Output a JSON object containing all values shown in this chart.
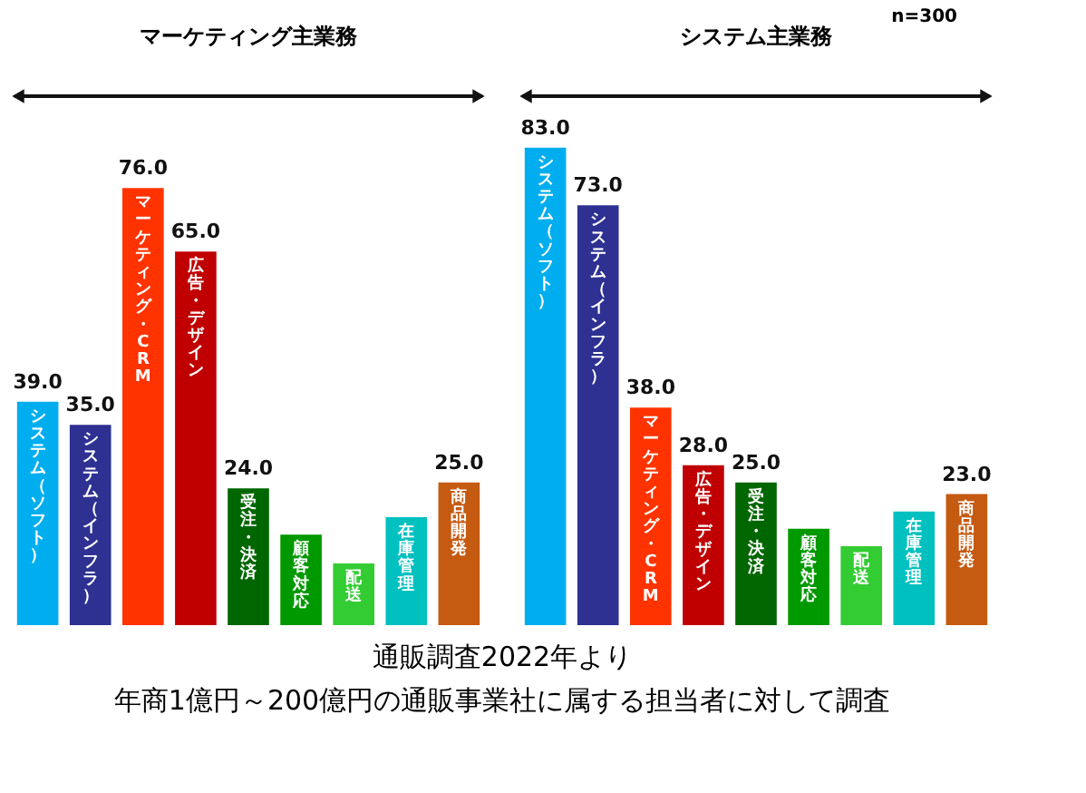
{
  "chart_data": [
    {
      "type": "bar",
      "title": "マーケティング主業務",
      "categories": [
        "システム（ソフト）",
        "システム（インフラ）",
        "マーケティング・CRM",
        "広告・デザイン",
        "受注・決済",
        "顧客対応",
        "配送",
        "在庫管理",
        "商品開発"
      ],
      "values": [
        39,
        35,
        76,
        65,
        24,
        16,
        11,
        19,
        25
      ],
      "colors": [
        "#00aeef",
        "#2e3192",
        "#ff3300",
        "#c00000",
        "#006600",
        "#009900",
        "#33cc33",
        "#00c0c0",
        "#c55a11"
      ],
      "value_labels": [
        "39.0",
        "35.0",
        "76.0",
        "65.0",
        "24.0",
        null,
        null,
        null,
        "25.0"
      ]
    },
    {
      "type": "bar",
      "title": "システム主業務",
      "categories": [
        "システム（ソフト）",
        "システム（インフラ）",
        "マーケティング・CRM",
        "広告・デザイン",
        "受注・決済",
        "顧客対応",
        "配送",
        "在庫管理",
        "商品開発"
      ],
      "values": [
        83,
        73,
        38,
        28,
        25,
        17,
        14,
        20,
        23
      ],
      "colors": [
        "#00aeef",
        "#2e3192",
        "#ff3300",
        "#c00000",
        "#006600",
        "#009900",
        "#33cc33",
        "#00c0c0",
        "#c55a11"
      ],
      "value_labels": [
        "83.0",
        "73.0",
        "38.0",
        "28.0",
        "25.0",
        null,
        null,
        null,
        "23.0"
      ],
      "annotations": [
        "n=300",
        "通販調査2022年より",
        "年商1億円～200億円の通販事業社に属する担当者に対して調査"
      ]
    }
  ]
}
